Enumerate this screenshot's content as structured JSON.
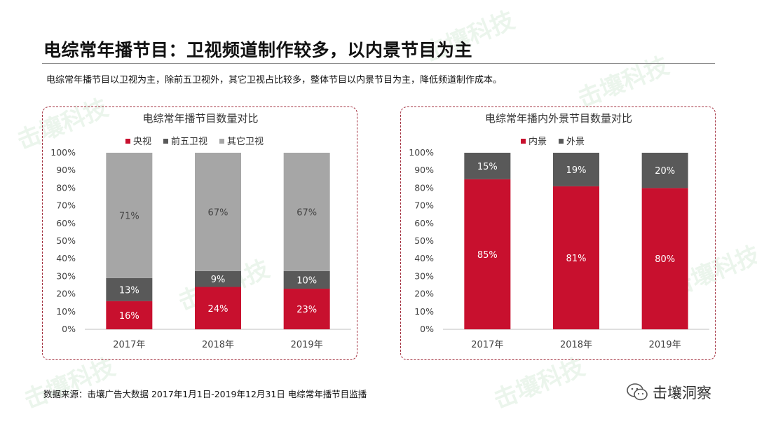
{
  "page": {
    "title": "电综常年播节目：卫视频道制作较多，以内景节目为主",
    "subtitle": "电综常年播节目以卫视为主，除前五卫视外，其它卫视占比较多，整体节目以内景节目为主，降低频道制作成本。",
    "source": "数据来源：击壤广告大数据 2017年1月1日-2019年12月31日 电综常年播节目监播",
    "brand": "击壤洞察",
    "watermark": "击壤科技"
  },
  "chart_data": [
    {
      "type": "bar",
      "stacked": true,
      "title": "电综常年播节目数量对比",
      "categories": [
        "2017年",
        "2018年",
        "2019年"
      ],
      "series": [
        {
          "name": "央视",
          "values": [
            16,
            24,
            23
          ],
          "labels": [
            "16%",
            "24%",
            "23%"
          ],
          "color": "#c8102e"
        },
        {
          "name": "前五卫视",
          "values": [
            13,
            9,
            10
          ],
          "labels": [
            "13%",
            "9%",
            "10%"
          ],
          "color": "#595959"
        },
        {
          "name": "其它卫视",
          "values": [
            71,
            67,
            67
          ],
          "labels": [
            "71%",
            "67%",
            "67%"
          ],
          "color": "#a6a6a6"
        }
      ],
      "ylim": [
        0,
        100
      ],
      "yticks": [
        "0%",
        "10%",
        "20%",
        "30%",
        "40%",
        "50%",
        "60%",
        "70%",
        "80%",
        "90%",
        "100%"
      ],
      "legend": "top",
      "grid": false
    },
    {
      "type": "bar",
      "stacked": true,
      "title": "电综常年播内外景节目数量对比",
      "categories": [
        "2017年",
        "2018年",
        "2019年"
      ],
      "series": [
        {
          "name": "内景",
          "values": [
            85,
            81,
            80
          ],
          "labels": [
            "85%",
            "81%",
            "80%"
          ],
          "color": "#c8102e"
        },
        {
          "name": "外景",
          "values": [
            15,
            19,
            20
          ],
          "labels": [
            "15%",
            "19%",
            "20%"
          ],
          "color": "#595959"
        }
      ],
      "ylim": [
        0,
        100
      ],
      "yticks": [
        "0%",
        "10%",
        "20%",
        "30%",
        "40%",
        "50%",
        "60%",
        "70%",
        "80%",
        "90%",
        "100%"
      ],
      "legend": "top",
      "grid": false
    }
  ]
}
